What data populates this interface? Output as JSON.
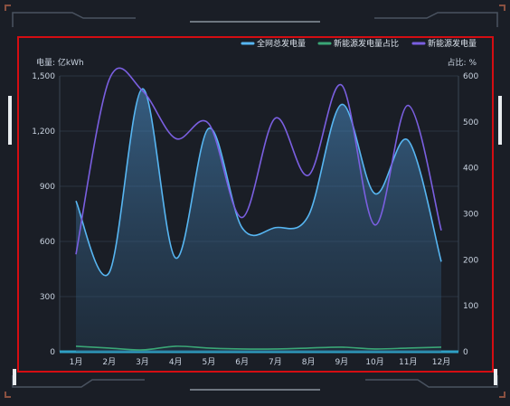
{
  "chart_data": {
    "type": "line",
    "categories": [
      "1月",
      "2月",
      "3月",
      "4月",
      "5月",
      "6月",
      "7月",
      "8月",
      "9月",
      "10月",
      "11月",
      "12月"
    ],
    "y_left": {
      "label": "电量: 亿kWh",
      "min": 0,
      "max": 1500,
      "ticks": [
        "0",
        "300",
        "600",
        "900",
        "1,200",
        "1,500"
      ]
    },
    "y_right": {
      "label": "占比: %",
      "min": 0,
      "max": 600,
      "ticks": [
        "0",
        "100",
        "200",
        "300",
        "400",
        "500",
        "600"
      ]
    },
    "series": [
      {
        "name": "全网总发电量",
        "axis": "left",
        "color": "#57b6f2",
        "area": true,
        "values": [
          820,
          430,
          1430,
          510,
          1215,
          675,
          675,
          740,
          1345,
          860,
          1150,
          490
        ]
      },
      {
        "name": "新能源发电量占比",
        "axis": "left",
        "color": "#3aa676",
        "area": false,
        "values": [
          30,
          20,
          10,
          30,
          20,
          15,
          15,
          20,
          25,
          15,
          20,
          25
        ]
      },
      {
        "name": "新能源发电量",
        "axis": "left",
        "color": "#7a5fe0",
        "area": false,
        "values": [
          530,
          1480,
          1420,
          1160,
          1240,
          730,
          1270,
          960,
          1450,
          690,
          1340,
          660
        ]
      }
    ],
    "legend": "top-right",
    "grid": true
  },
  "colors": {
    "frame_border": "#d40d12",
    "background": "#1a1e26",
    "grid": "#2a3440",
    "axis_text": "#c9d3e0"
  }
}
